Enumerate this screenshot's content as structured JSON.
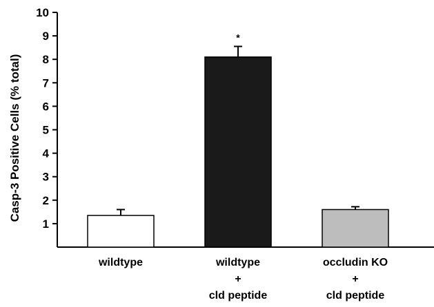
{
  "chart_data": {
    "type": "bar",
    "ylabel": "Casp-3 Positive Cells (% total)",
    "xlabel": "",
    "title": "",
    "ylim": [
      0,
      10
    ],
    "yticks": [
      1,
      2,
      3,
      4,
      5,
      6,
      7,
      8,
      9,
      10
    ],
    "grid": false,
    "categories": [
      {
        "lines": [
          "wildtype"
        ]
      },
      {
        "lines": [
          "wildtype",
          "+",
          "cld peptide"
        ]
      },
      {
        "lines": [
          "occludin KO",
          "+",
          "cld peptide"
        ]
      }
    ],
    "values": [
      1.35,
      8.1,
      1.6
    ],
    "errors": [
      0.25,
      0.45,
      0.12
    ],
    "bar_colors": [
      "#ffffff",
      "#1a1a1a",
      "#bdbdbd"
    ],
    "annotations": [
      {
        "category_index": 1,
        "text": "*"
      }
    ]
  }
}
